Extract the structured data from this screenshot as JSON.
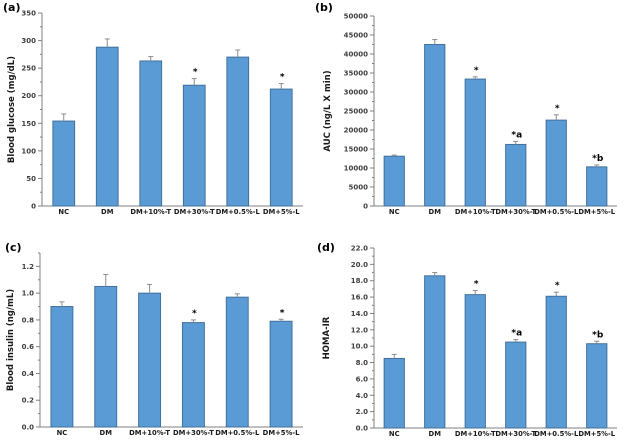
{
  "style": {
    "bar_fill": "#5B9BD5",
    "bar_border": "#41719C",
    "error_color": "#8C8C8C",
    "axis_color": "#808080",
    "tick_text_color": "#404040",
    "label_text_color": "#1a1a1a",
    "sig_text_color": "#000000",
    "background": "#ffffff"
  },
  "chart_data": [
    {
      "type": "bar",
      "panel_label": "(a)",
      "ylabel": "Blood glucose (mg/dL)",
      "xlabel": "",
      "ylim": [
        0,
        350
      ],
      "ytick_step": 50,
      "tick_decimals": 0,
      "grid": false,
      "legend": "none",
      "categories": [
        "NC",
        "DM",
        "DM+10%-T",
        "DM+30%-T",
        "DM+0.5%-L",
        "DM+5%-L"
      ],
      "values": [
        154,
        288,
        263,
        219,
        270,
        212
      ],
      "errors": [
        13,
        15,
        8,
        12,
        13,
        10
      ],
      "significance": [
        "",
        "",
        "",
        "*",
        "",
        "*"
      ]
    },
    {
      "type": "bar",
      "panel_label": "(b)",
      "ylabel": "AUC  (ng/L X min)",
      "xlabel": "",
      "ylim": [
        0,
        50000
      ],
      "ytick_step": 5000,
      "tick_decimals": 0,
      "grid": false,
      "legend": "none",
      "categories": [
        "NC",
        "DM",
        "DM+10%-T",
        "DM+30%-T",
        "DM+0.5%-L",
        "DM+5%-L"
      ],
      "values": [
        13100,
        42500,
        33400,
        16200,
        22600,
        10300
      ],
      "errors": [
        300,
        1300,
        600,
        800,
        1400,
        500
      ],
      "significance": [
        "",
        "",
        "*",
        "*a",
        "*",
        "*b"
      ]
    },
    {
      "type": "bar",
      "panel_label": "(c)",
      "ylabel": "Blood insulin (ng/mL)",
      "xlabel": "",
      "ylim": [
        0,
        1.3
      ],
      "ytick_step": 0.2,
      "tick_decimals": 1,
      "grid": false,
      "legend": "none",
      "categories": [
        "NC",
        "DM",
        "DM+10%-T",
        "DM+30%-T",
        "DM+0.5%-L",
        "DM+5%-L"
      ],
      "values": [
        0.9,
        1.05,
        1.0,
        0.78,
        0.97,
        0.79
      ],
      "errors": [
        0.035,
        0.09,
        0.065,
        0.02,
        0.025,
        0.015
      ],
      "significance": [
        "",
        "",
        "",
        "*",
        "",
        "*"
      ]
    },
    {
      "type": "bar",
      "panel_label": "(d)",
      "ylabel": "HOMA-IR",
      "xlabel": "",
      "ylim": [
        0,
        22
      ],
      "ytick_step": 2,
      "tick_decimals": 1,
      "grid": false,
      "legend": "none",
      "categories": [
        "NC",
        "DM",
        "DM+10%-T",
        "DM+30%-T",
        "DM+0.5%-L",
        "DM+5%-L"
      ],
      "values": [
        8.5,
        18.6,
        16.3,
        10.5,
        16.1,
        10.3
      ],
      "errors": [
        0.5,
        0.4,
        0.5,
        0.3,
        0.5,
        0.3
      ],
      "significance": [
        "",
        "",
        "*",
        "*a",
        "*",
        "*b"
      ]
    }
  ]
}
